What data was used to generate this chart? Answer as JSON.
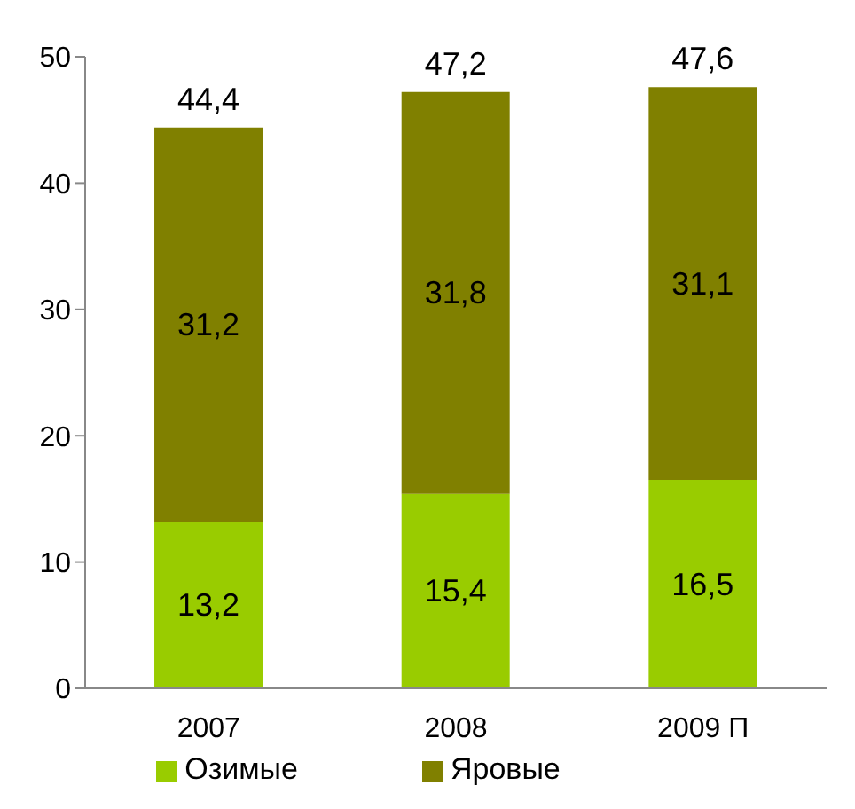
{
  "chart_data": {
    "type": "bar",
    "stacked": true,
    "categories": [
      "2007",
      "2008",
      "2009 П"
    ],
    "series": [
      {
        "name": "Озимые",
        "color": "#99cc00",
        "values": [
          13.2,
          15.4,
          16.5
        ],
        "value_labels": [
          "13,2",
          "15,4",
          "16,5"
        ]
      },
      {
        "name": "Яровые",
        "color": "#808000",
        "values": [
          31.2,
          31.8,
          31.1
        ],
        "value_labels": [
          "31,2",
          "31,8",
          "31,1"
        ]
      }
    ],
    "totals": [
      "44,4",
      "47,2",
      "47,6"
    ],
    "ylim": [
      0,
      50
    ],
    "yticks": [
      0,
      10,
      20,
      30,
      40,
      50
    ],
    "grid": false,
    "legend": "bottom"
  }
}
